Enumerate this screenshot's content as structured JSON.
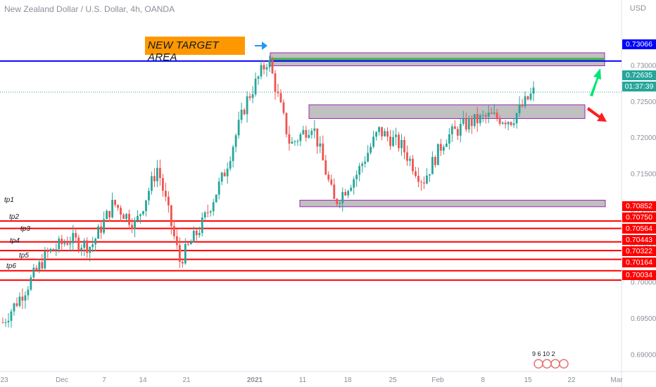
{
  "header": {
    "title": "New Zealand Dollar / U.S. Dollar, 4h, OANDA",
    "currency": "USD"
  },
  "annotations": {
    "target_label": "NEW TARGET AREA",
    "tp_labels": [
      "tp1",
      "tp2",
      "tp3",
      "tp4",
      "tp5",
      "tp6"
    ]
  },
  "price_tags": {
    "target": "0.73066",
    "last": "0.72635",
    "countdown": "01:37:39",
    "tps": [
      "0.70852",
      "0.70750",
      "0.70564",
      "0.70443",
      "0.70322",
      "0.70164",
      "0.70034"
    ]
  },
  "flags_text": "9  6  10  2",
  "colors": {
    "up": "#26a69a",
    "down": "#ef5350",
    "tp_line": "#ff0000",
    "target_line": "#0000ff",
    "zone_fill": "#9e9e9e",
    "zone_border": "#9c27b0",
    "target_zone_fill": "#4caf50",
    "last_price": "#26a69a",
    "arrow_up": "#00e676",
    "arrow_down": "#ff1e1e"
  },
  "chart_data": {
    "type": "candlestick",
    "title": "New Zealand Dollar / U.S. Dollar, 4h, OANDA",
    "x_ticks": [
      "23",
      "Dec",
      "7",
      "14",
      "21",
      "2021",
      "11",
      "18",
      "25",
      "Feb",
      "8",
      "15",
      "22",
      "Mar"
    ],
    "y_ticks": [
      "0.69000",
      "0.69500",
      "0.70000",
      "0.70500",
      "0.71000",
      "0.71500",
      "0.72000",
      "0.72500",
      "0.73000"
    ],
    "ylim": [
      0.6877,
      0.7391
    ],
    "last_price": 0.72635,
    "horizontal_levels": [
      {
        "label": "target",
        "value": 0.73066
      },
      {
        "label": "tp1",
        "value": 0.70852
      },
      {
        "label": "tp2",
        "value": 0.7075
      },
      {
        "label": "tp3",
        "value": 0.70564
      },
      {
        "label": "tp4",
        "value": 0.70443
      },
      {
        "label": "tp5",
        "value": 0.70322
      },
      {
        "label": "tp6",
        "value": 0.70164
      },
      {
        "label": "",
        "value": 0.70034
      }
    ],
    "zones": [
      {
        "name": "target-area",
        "from": 0.73,
        "to": 0.7318
      },
      {
        "name": "resistance",
        "from": 0.7227,
        "to": 0.7246
      },
      {
        "name": "support",
        "from": 0.7105,
        "to": 0.7114
      }
    ],
    "price_path": [
      [
        "23",
        0.6945
      ],
      [
        "",
        0.699
      ],
      [
        "Dec",
        0.704
      ],
      [
        "",
        0.706
      ],
      [
        "7",
        0.705
      ],
      [
        "",
        0.711
      ],
      [
        "14",
        0.708
      ],
      [
        "",
        0.716
      ],
      [
        "21",
        0.703
      ],
      [
        "",
        0.708
      ],
      [
        "",
        0.715
      ],
      [
        "2021",
        0.725
      ],
      [
        "",
        0.731
      ],
      [
        "11",
        0.719
      ],
      [
        "",
        0.722
      ],
      [
        "18",
        0.711
      ],
      [
        "",
        0.715
      ],
      [
        "25",
        0.721
      ],
      [
        "",
        0.719
      ],
      [
        "Feb",
        0.714
      ],
      [
        "",
        0.72
      ],
      [
        "8",
        0.722
      ],
      [
        "",
        0.723
      ],
      [
        "15",
        0.7225
      ],
      [
        "",
        0.72635
      ]
    ]
  }
}
